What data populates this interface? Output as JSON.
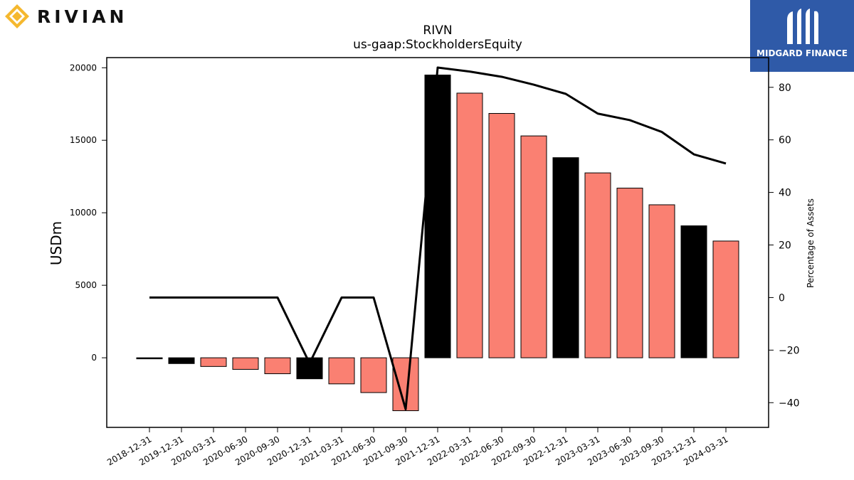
{
  "brand": {
    "name": "RIVIAN",
    "accent": "#f5b82e"
  },
  "watermark": {
    "name": "MIDGARD FINANCE",
    "background": "#2f5aa8"
  },
  "chart_data": {
    "type": "bar",
    "title": "RIVN",
    "subtitle": "us-gaap:StockholdersEquity",
    "ylabel": "USDm",
    "y2label": "Percentage of Assets",
    "ylim": [
      -4800,
      20700
    ],
    "y2lim": [
      -49.4,
      91.3
    ],
    "yticks": [
      "0",
      "5000",
      "10000",
      "15000",
      "20000"
    ],
    "y2ticks": [
      "−40",
      "−20",
      "0",
      "20",
      "40",
      "60",
      "80"
    ],
    "categories": [
      "2018-12-31",
      "2019-12-31",
      "2020-03-31",
      "2020-06-30",
      "2020-09-30",
      "2020-12-31",
      "2021-03-31",
      "2021-06-30",
      "2021-09-30",
      "2021-12-31",
      "2022-03-31",
      "2022-06-30",
      "2022-09-30",
      "2022-12-31",
      "2023-03-31",
      "2023-06-30",
      "2023-09-30",
      "2023-12-31",
      "2024-03-31"
    ],
    "series": [
      {
        "type": "bar",
        "axis": "left",
        "values": [
          -60,
          -400,
          -600,
          -800,
          -1100,
          -1450,
          -1800,
          -2400,
          -3650,
          19500,
          18250,
          16850,
          15300,
          13800,
          12750,
          11700,
          10550,
          9100,
          8050
        ],
        "colors": [
          "#000000",
          "#000000",
          "#fa8072",
          "#fa8072",
          "#fa8072",
          "#000000",
          "#fa8072",
          "#fa8072",
          "#fa8072",
          "#000000",
          "#fa8072",
          "#fa8072",
          "#fa8072",
          "#000000",
          "#fa8072",
          "#fa8072",
          "#fa8072",
          "#000000",
          "#fa8072"
        ]
      },
      {
        "type": "line",
        "axis": "right",
        "color": "#000000",
        "values": [
          0,
          0,
          0,
          0,
          0,
          -25,
          0,
          0,
          -42.5,
          87.5,
          86,
          84,
          81,
          77.5,
          70,
          67.5,
          63,
          54.5,
          51
        ]
      }
    ],
    "grid": false,
    "legend": "none"
  }
}
